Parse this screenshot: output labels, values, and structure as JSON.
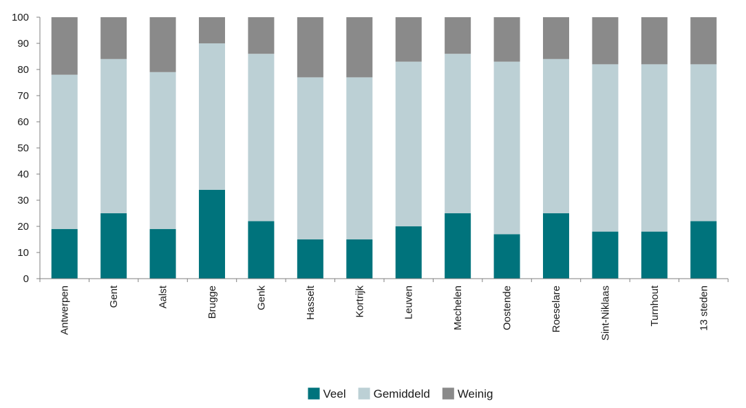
{
  "chart_data": {
    "type": "bar",
    "stacked": true,
    "categories": [
      "Antwerpen",
      "Gent",
      "Aalst",
      "Brugge",
      "Genk",
      "Hasselt",
      "Kortrijk",
      "Leuven",
      "Mechelen",
      "Oostende",
      "Roeselare",
      "Sint-Niklaas",
      "Turnhout",
      "13 steden"
    ],
    "series": [
      {
        "name": "Veel",
        "color": "#00737c",
        "values": [
          19,
          25,
          19,
          34,
          22,
          15,
          15,
          20,
          25,
          17,
          25,
          18,
          18,
          22
        ]
      },
      {
        "name": "Gemiddeld",
        "color": "#bcd0d5",
        "values": [
          59,
          59,
          60,
          56,
          64,
          62,
          62,
          63,
          61,
          66,
          59,
          64,
          64,
          60
        ]
      },
      {
        "name": "Weinig",
        "color": "#8a8a8a",
        "values": [
          22,
          16,
          21,
          10,
          14,
          23,
          23,
          17,
          14,
          17,
          16,
          18,
          18,
          18
        ]
      }
    ],
    "ylim": [
      0,
      100
    ],
    "yticks": [
      0,
      10,
      20,
      30,
      40,
      50,
      60,
      70,
      80,
      90,
      100
    ],
    "grid": false,
    "legend_position": "bottom-center"
  }
}
